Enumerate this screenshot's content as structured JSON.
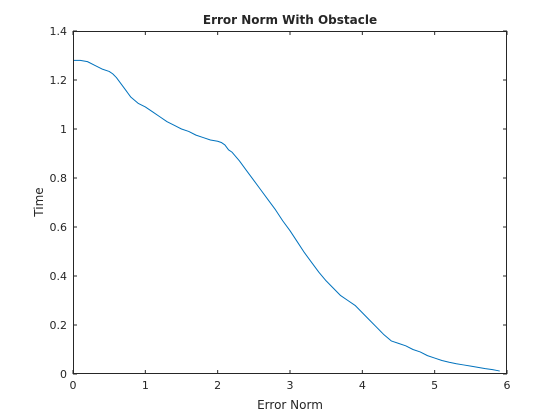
{
  "chart_data": {
    "type": "line",
    "title": "Error Norm With Obstacle",
    "xlabel": "Error Norm",
    "ylabel": "Time",
    "xlim": [
      0,
      6
    ],
    "ylim": [
      0,
      1.4
    ],
    "xticks": [
      "0",
      "1",
      "2",
      "3",
      "4",
      "5",
      "6"
    ],
    "yticks": [
      "0",
      "0.2",
      "0.4",
      "0.6",
      "0.8",
      "1",
      "1.2",
      "1.4"
    ],
    "grid": false,
    "series": [
      {
        "color": "#0072bd",
        "x": [
          0,
          0.1,
          0.2,
          0.3,
          0.4,
          0.5,
          0.55,
          0.6,
          0.7,
          0.8,
          0.9,
          1.0,
          1.1,
          1.2,
          1.3,
          1.4,
          1.5,
          1.6,
          1.7,
          1.8,
          1.9,
          2.0,
          2.05,
          2.1,
          2.15,
          2.2,
          2.3,
          2.4,
          2.5,
          2.6,
          2.7,
          2.8,
          2.9,
          3.0,
          3.1,
          3.2,
          3.3,
          3.4,
          3.5,
          3.6,
          3.7,
          3.8,
          3.9,
          4.0,
          4.1,
          4.2,
          4.3,
          4.4,
          4.5,
          4.6,
          4.7,
          4.8,
          4.9,
          5.0,
          5.1,
          5.2,
          5.3,
          5.4,
          5.5,
          5.6,
          5.7,
          5.8,
          5.85,
          5.9
        ],
        "y": [
          1.28,
          1.28,
          1.275,
          1.26,
          1.245,
          1.235,
          1.225,
          1.21,
          1.17,
          1.13,
          1.105,
          1.09,
          1.07,
          1.05,
          1.03,
          1.015,
          1.0,
          0.99,
          0.975,
          0.965,
          0.955,
          0.95,
          0.945,
          0.935,
          0.915,
          0.905,
          0.87,
          0.83,
          0.79,
          0.75,
          0.71,
          0.67,
          0.625,
          0.585,
          0.54,
          0.495,
          0.455,
          0.415,
          0.38,
          0.35,
          0.32,
          0.3,
          0.28,
          0.25,
          0.22,
          0.19,
          0.16,
          0.135,
          0.125,
          0.115,
          0.1,
          0.09,
          0.075,
          0.065,
          0.055,
          0.048,
          0.042,
          0.037,
          0.032,
          0.027,
          0.022,
          0.018,
          0.015,
          0.012
        ]
      }
    ]
  }
}
